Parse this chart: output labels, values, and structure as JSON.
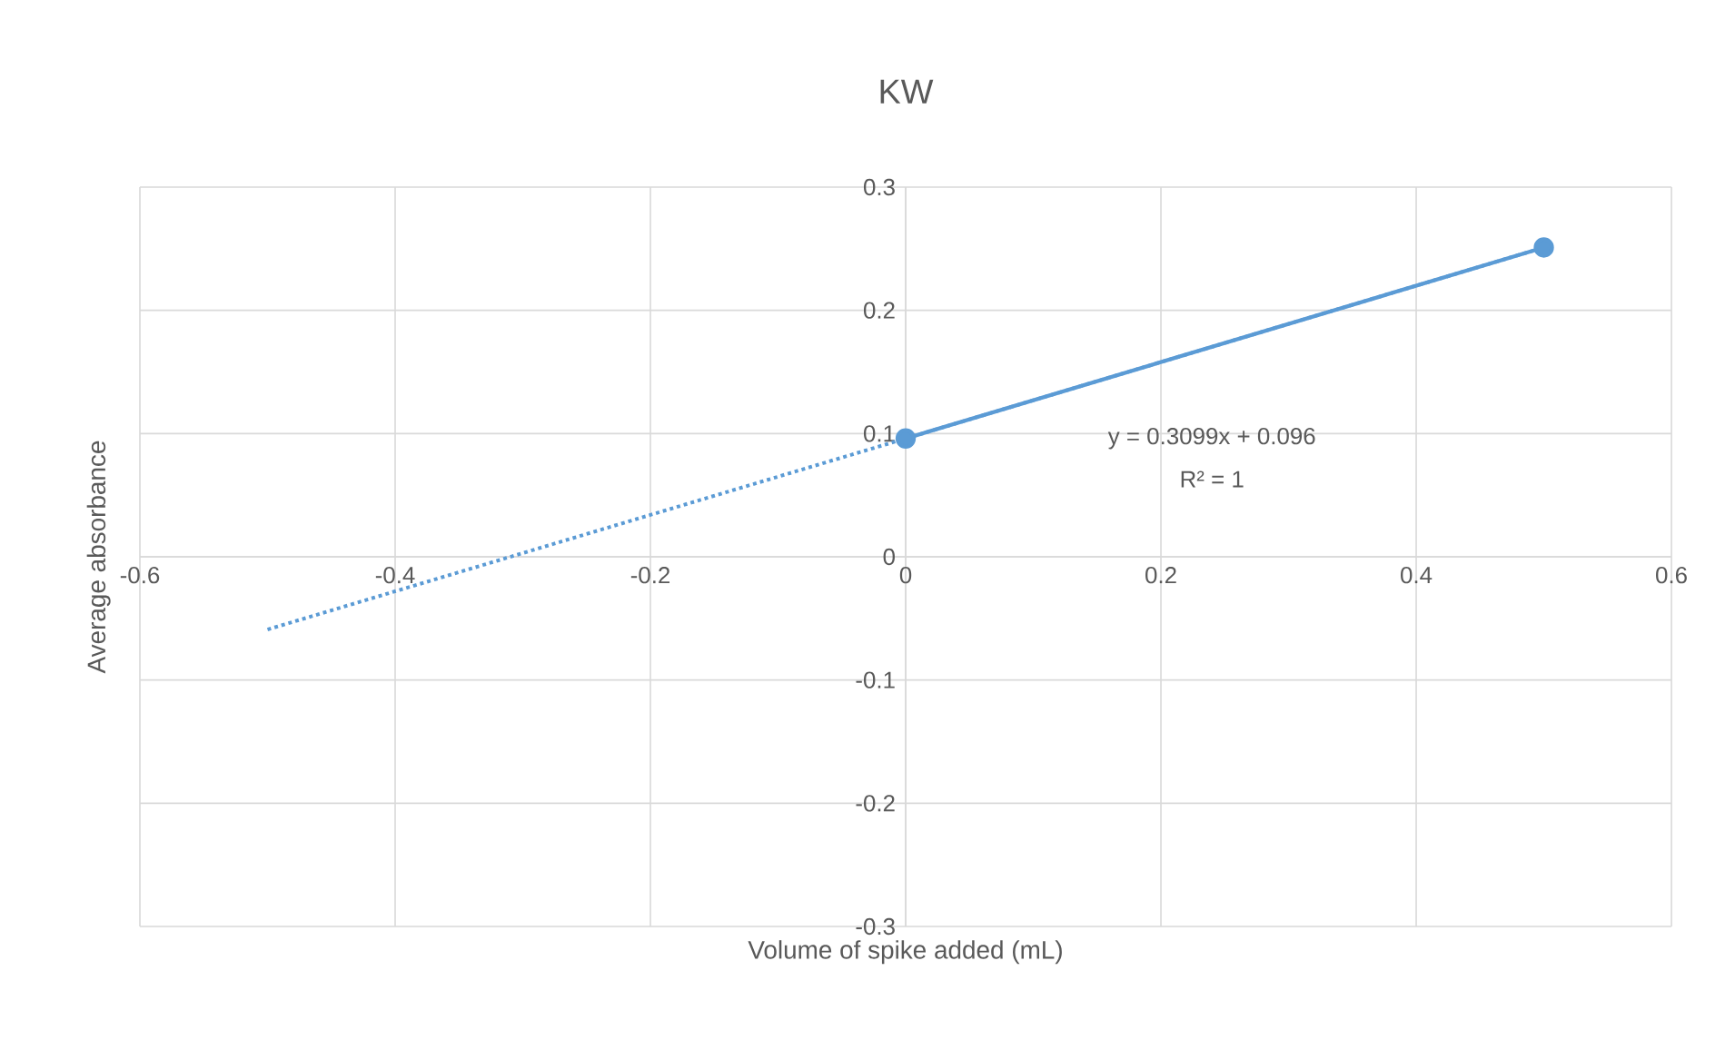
{
  "chart_data": {
    "type": "line",
    "title": "KW",
    "xlabel": "Volume of spike added (mL)",
    "ylabel": "Average absorbance",
    "xlim": [
      -0.6,
      0.6
    ],
    "xticks": [
      -0.6,
      -0.4,
      -0.2,
      0,
      0.2,
      0.4,
      0.6
    ],
    "ylim": [
      -0.3,
      0.3
    ],
    "yticks": [
      -0.3,
      -0.2,
      -0.1,
      0,
      0.1,
      0.2,
      0.3
    ],
    "grid": true,
    "series": [
      {
        "color": "#5b9bd5",
        "x": [
          0,
          0.5
        ],
        "values": [
          0.096,
          0.251
        ],
        "marker": "circle",
        "line_style": "solid"
      },
      {
        "type": "line",
        "color": "#5b9bd5",
        "x": [
          -0.5,
          0.5
        ],
        "values": [
          -0.059,
          0.251
        ],
        "marker": "none",
        "line_style": "dotted"
      }
    ],
    "annotations": [
      "y = 0.3099x + 0.096",
      "R² = 1"
    ]
  }
}
